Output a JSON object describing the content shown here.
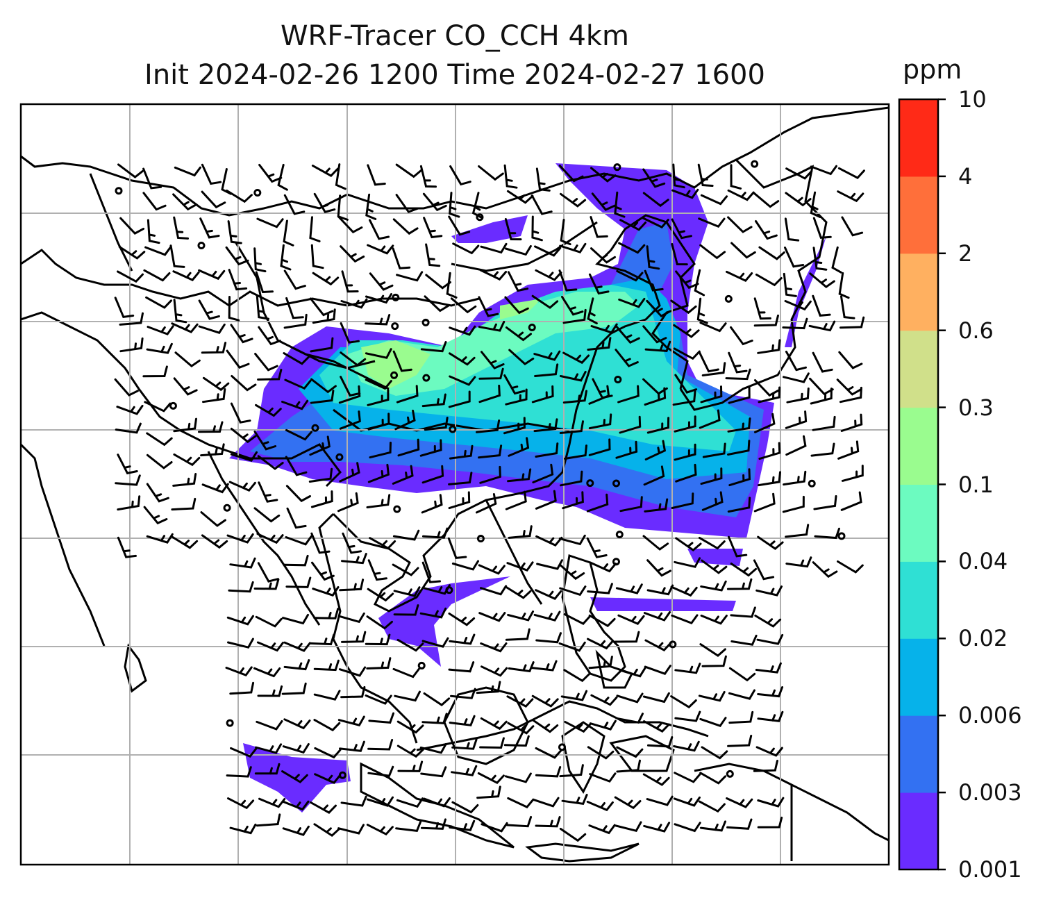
{
  "title": {
    "line1": "WRF-Tracer CO_CCH 4km",
    "line2": "Init 2024-02-26 1200 Time 2024-02-27 1600"
  },
  "colorbar": {
    "units": "ppm",
    "ticks": [
      "0.001",
      "0.003",
      "0.006",
      "0.02",
      "0.04",
      "0.1",
      "0.3",
      "0.6",
      "2",
      "4",
      "10"
    ],
    "colors": [
      "#6a2cff",
      "#3371f2",
      "#06b2ea",
      "#2fe0d4",
      "#6cfbc0",
      "#9afc8f",
      "#d0e08a",
      "#ffb060",
      "#ff6f3a",
      "#ff2a17"
    ]
  },
  "map": {
    "land_outline_color": "#000000",
    "gridline_color": "#b0b0b0",
    "barb_color": "#000000"
  }
}
